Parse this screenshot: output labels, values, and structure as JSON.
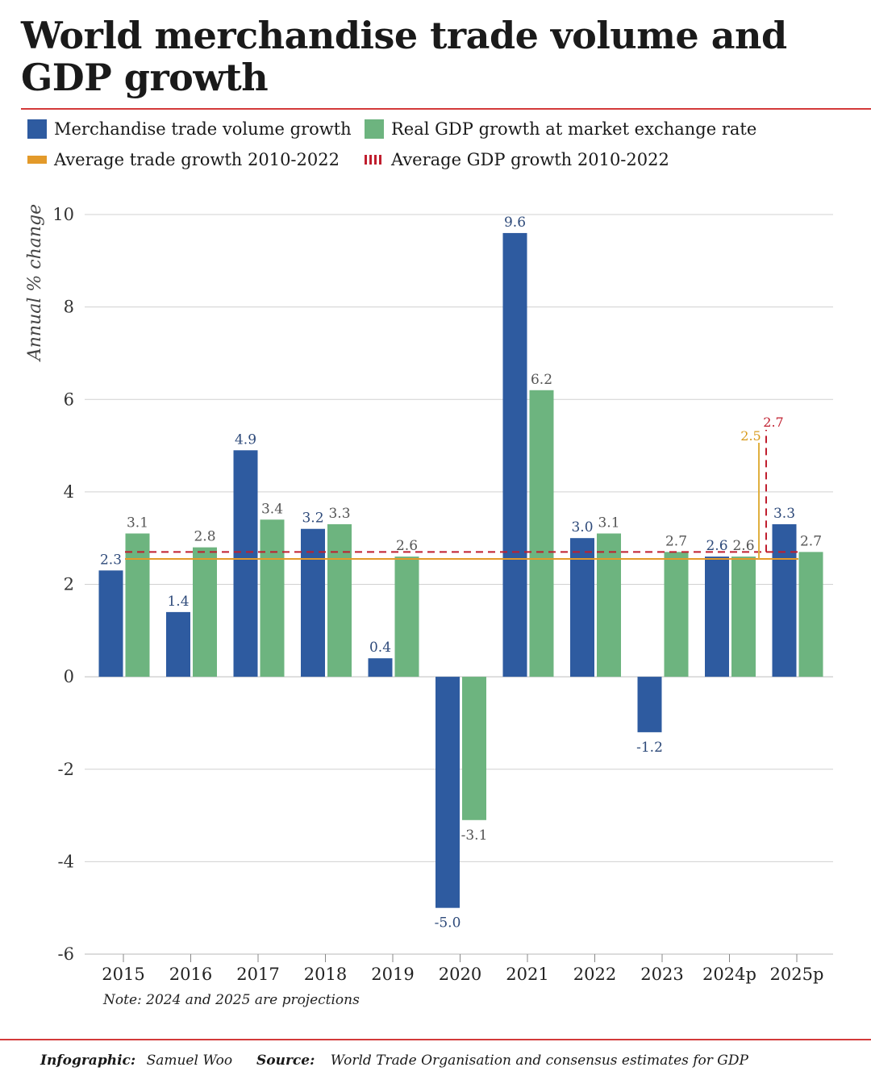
{
  "title": "World merchandise trade volume and GDP growth",
  "legend": {
    "trade": "Merchandise trade volume growth",
    "gdp": "Real GDP growth at market exchange rate",
    "avg_trade": "Average trade growth 2010-2022",
    "avg_gdp": "Average GDP growth 2010-2022"
  },
  "colors": {
    "trade": "#2e5ba0",
    "gdp": "#6db47f",
    "avg_trade": "#e39a2a",
    "avg_gdp": "#c01e2e",
    "rule": "#d33a3a"
  },
  "chart_data": {
    "type": "bar",
    "ylabel": "Annual % change",
    "ylim": [
      -6,
      10
    ],
    "yticks": [
      "10",
      "8",
      "6",
      "4",
      "2",
      "0",
      "-2",
      "-4",
      "-6"
    ],
    "ytick_values": [
      10,
      8,
      6,
      4,
      2,
      0,
      -2,
      -4,
      -6
    ],
    "categories": [
      "2015",
      "2016",
      "2017",
      "2018",
      "2019",
      "2020",
      "2021",
      "2022",
      "2023",
      "2024p",
      "2025p"
    ],
    "series": [
      {
        "name": "Merchandise trade volume growth",
        "values": [
          2.3,
          1.4,
          4.9,
          3.2,
          0.4,
          -5.0,
          9.6,
          3.0,
          -1.2,
          2.6,
          3.3
        ],
        "labels": [
          "2.3",
          "1.4",
          "4.9",
          "3.2",
          "0.4",
          "-5.0",
          "9.6",
          "3.0",
          "-1.2",
          "2.6",
          "3.3"
        ]
      },
      {
        "name": "Real GDP growth at market exchange rate",
        "values": [
          3.1,
          2.8,
          3.4,
          3.3,
          2.6,
          -3.1,
          6.2,
          3.1,
          2.7,
          2.6,
          2.7
        ],
        "labels": [
          "3.1",
          "2.8",
          "3.4",
          "3.3",
          "2.6",
          "-3.1",
          "6.2",
          "3.1",
          "2.7",
          "2.6",
          "2.7"
        ]
      }
    ],
    "averages": {
      "trade": {
        "value": 2.55,
        "label": "2.5"
      },
      "gdp": {
        "value": 2.7,
        "label": "2.7"
      }
    },
    "grid": true
  },
  "note": "Note: 2024 and 2025 are projections",
  "footer": {
    "infographic_label": "Infographic:",
    "infographic_value": "Samuel Woo",
    "source_label": "Source:",
    "source_value": "World Trade Organisation and consensus estimates for GDP"
  }
}
